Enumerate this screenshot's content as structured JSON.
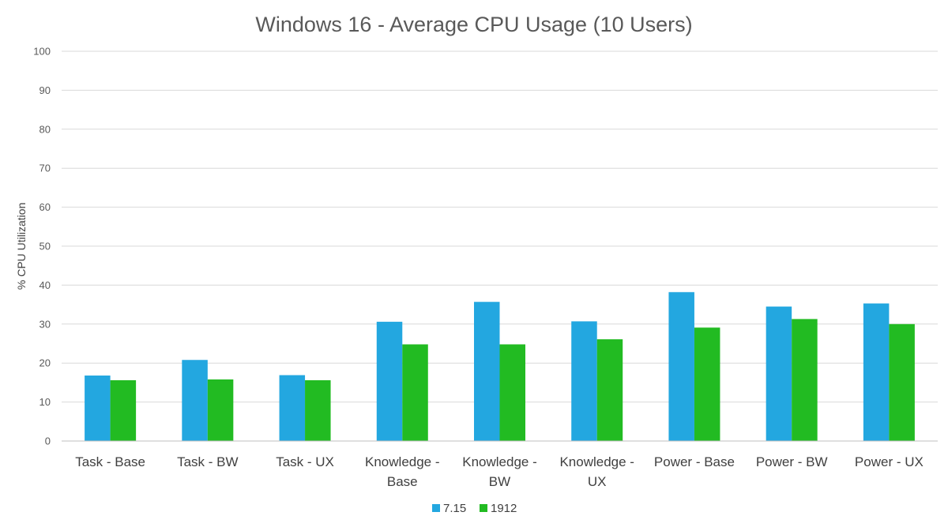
{
  "chart_data": {
    "type": "bar",
    "title": "Windows 16 - Average CPU Usage (10 Users)",
    "xlabel": "",
    "ylabel": "% CPU Utilization",
    "ylim": [
      0,
      100
    ],
    "yticks": [
      0,
      10,
      20,
      30,
      40,
      50,
      60,
      70,
      80,
      90,
      100
    ],
    "grid": true,
    "legend_position": "bottom",
    "categories": [
      "Task - Base",
      "Task - BW",
      "Task - UX",
      "Knowledge - Base",
      "Knowledge - BW",
      "Knowledge - UX",
      "Power - Base",
      "Power - BW",
      "Power - UX"
    ],
    "category_label_lines": [
      [
        "Task - Base"
      ],
      [
        "Task - BW"
      ],
      [
        "Task - UX"
      ],
      [
        "Knowledge -",
        "Base"
      ],
      [
        "Knowledge -",
        "BW"
      ],
      [
        "Knowledge -",
        "UX"
      ],
      [
        "Power - Base"
      ],
      [
        "Power - BW"
      ],
      [
        "Power - UX"
      ]
    ],
    "series": [
      {
        "name": "7.15",
        "color": "#23a7e0",
        "values": [
          16.8,
          20.8,
          16.9,
          30.6,
          35.7,
          30.7,
          38.2,
          34.5,
          35.3
        ]
      },
      {
        "name": "1912",
        "color": "#22bb22",
        "values": [
          15.6,
          15.8,
          15.6,
          24.8,
          24.8,
          26.1,
          29.1,
          31.3,
          30.0
        ]
      }
    ]
  }
}
